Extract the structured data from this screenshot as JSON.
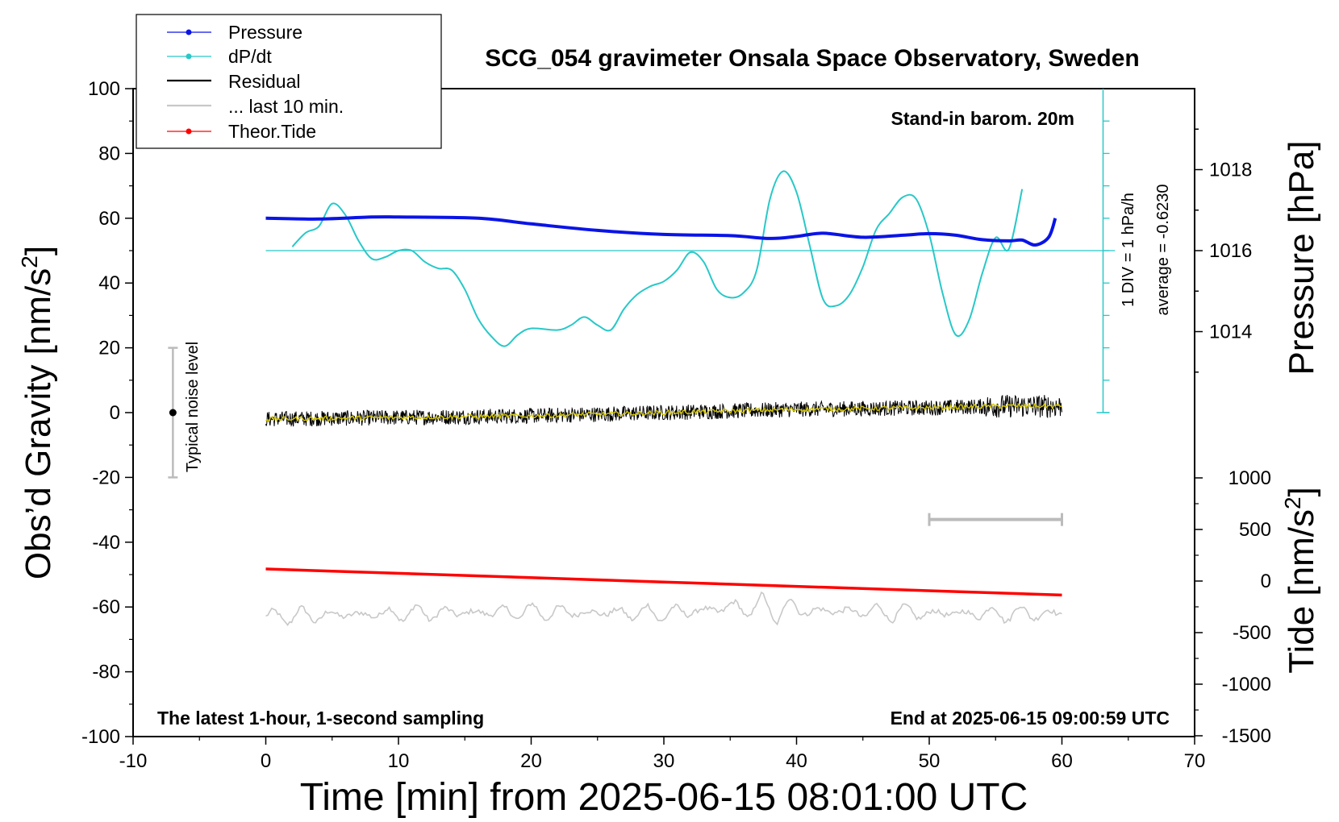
{
  "chart_data": {
    "type": "line",
    "title": "SCG_054 gravimeter Onsala Space Observatory, Sweden",
    "xlabel": "Time [min] from 2025-06-15 08:01:00 UTC",
    "ylabel_left": "Obs’d Gravity [nm/s²]",
    "ylabel_left_main": "Obs’d Gravity [nm/s",
    "ylabel_left_sup": "2",
    "ylabel_left_end": "]",
    "ylabel_right_pressure": "Pressure [hPa]",
    "ylabel_right_tide": "Tide [nm/s²]",
    "ylabel_right_tide_main": "Tide [nm/s",
    "ylabel_right_tide_sup": "2",
    "ylabel_right_tide_end": "]",
    "xlim": [
      -10,
      70
    ],
    "ylim_left": [
      -100,
      100
    ],
    "ylim_pressure_visible": [
      1013,
      1019
    ],
    "ylim_tide": [
      -1500,
      1000
    ],
    "x_ticks": [
      "-10",
      "0",
      "10",
      "20",
      "30",
      "40",
      "50",
      "60",
      "70"
    ],
    "y_left_ticks": [
      "100",
      "80",
      "60",
      "40",
      "20",
      "0",
      "-20",
      "-40",
      "-60",
      "-80",
      "-100"
    ],
    "y_pressure_ticks": [
      "1018",
      "1016",
      "1014"
    ],
    "y_tide_ticks": [
      "1000",
      "500",
      "0",
      "-500",
      "-1000",
      "-1500"
    ],
    "legend": {
      "placement": "top-left",
      "entries": [
        "Pressure",
        "dP/dt",
        "Residual",
        "... last 10 min.",
        "Theor.Tide"
      ]
    },
    "annotations": {
      "barometer": "Stand-in barom. 20m",
      "latest": "The latest 1-hour, 1-second sampling",
      "end_time": "End at 2025-06-15 09:00:59 UTC",
      "noise": "Typical noise level",
      "dpdt_scale": "1 DIV = 1 hPa/h",
      "dpdt_average": "average = -0.6230"
    },
    "colors": {
      "pressure": "#0a14e6",
      "dpdt": "#28c8c8",
      "residual": "#000000",
      "last10": "#c8c8c8",
      "tide": "#ff0000",
      "filtered": "#d6c800"
    },
    "series": [
      {
        "name": "Pressure",
        "unit": "hPa",
        "x": [
          0,
          4,
          8,
          10,
          16,
          20,
          25,
          30,
          35,
          38,
          40,
          42,
          45,
          48,
          50,
          52,
          54,
          56,
          57,
          58,
          59,
          59.5
        ],
        "values": [
          1016.8,
          1016.78,
          1016.83,
          1016.83,
          1016.8,
          1016.66,
          1016.5,
          1016.4,
          1016.37,
          1016.3,
          1016.35,
          1016.43,
          1016.33,
          1016.38,
          1016.42,
          1016.38,
          1016.27,
          1016.24,
          1016.26,
          1016.14,
          1016.33,
          1016.8
        ]
      },
      {
        "name": "dP/dt",
        "unit": "hPa/h (1 DIV = 1 hPa/h, zero at gravity 50)",
        "x": [
          2,
          3,
          4,
          5,
          6,
          7,
          8,
          9,
          10,
          11,
          12,
          13,
          14,
          15,
          16,
          17,
          18,
          19,
          20,
          22,
          23,
          24,
          25,
          26,
          27,
          28,
          29,
          30,
          31,
          32,
          33,
          34,
          35,
          36,
          37,
          38,
          39,
          40,
          41,
          42,
          43,
          44,
          45,
          46,
          47,
          48,
          49,
          50,
          51,
          52,
          53,
          54,
          55,
          56,
          57
        ],
        "values": [
          0.12,
          0.55,
          0.75,
          1.45,
          1.1,
          0.3,
          -0.25,
          -0.2,
          0,
          0,
          -0.35,
          -0.55,
          -0.6,
          -1.2,
          -2.1,
          -2.65,
          -2.95,
          -2.6,
          -2.4,
          -2.45,
          -2.3,
          -2.05,
          -2.3,
          -2.45,
          -1.8,
          -1.35,
          -1.1,
          -0.95,
          -0.6,
          -0.05,
          -0.35,
          -1.2,
          -1.45,
          -1.3,
          -0.6,
          1.6,
          2.45,
          1.8,
          0.15,
          -1.5,
          -1.7,
          -1.35,
          -0.5,
          0.65,
          1.15,
          1.65,
          1.6,
          0.5,
          -1.3,
          -2.6,
          -2.15,
          -0.7,
          0.4,
          0.05,
          1.9
        ]
      },
      {
        "name": "Residual",
        "unit": "nm/s²",
        "x": [
          0,
          10,
          20,
          30,
          40,
          50,
          55,
          60
        ],
        "values": [
          -2,
          -1.5,
          -1,
          0,
          1,
          1.5,
          2,
          2
        ]
      },
      {
        "name": "... last 10 min.",
        "unit": "nm/s² (offset -62)",
        "x": [
          0,
          10,
          20,
          30,
          36,
          40,
          50,
          55,
          60
        ],
        "values": [
          -63,
          -62,
          -61.5,
          -62,
          -60,
          -61,
          -62,
          -62,
          -62
        ]
      },
      {
        "name": "Theor.Tide",
        "unit": "nm/s²",
        "x": [
          0,
          60
        ],
        "values": [
          117,
          -136
        ]
      }
    ],
    "noise_bar": {
      "x": -7,
      "center": 0,
      "range": [
        -20,
        20
      ]
    },
    "duration_bar": {
      "x_range": [
        50,
        60
      ],
      "y": -33
    }
  }
}
